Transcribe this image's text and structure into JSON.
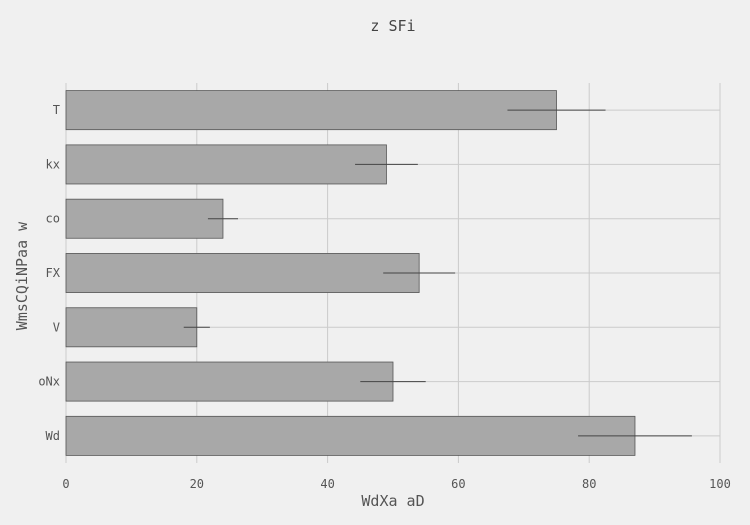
{
  "chart_data": {
    "type": "bar",
    "orientation": "horizontal",
    "title": "z  SFi",
    "xlabel": "WdXa  aD",
    "ylabel": "WmsCQiNPaa  w",
    "categories": [
      "T",
      "kx",
      "co",
      "FX",
      "V",
      "oNx",
      "Wd"
    ],
    "values": [
      75,
      49,
      24,
      54,
      20,
      50,
      87
    ],
    "errors": [
      7.5,
      4.8,
      2.3,
      5.5,
      2.0,
      5.0,
      8.7
    ],
    "xlim": [
      0,
      100
    ],
    "xticks": [
      0,
      20,
      40,
      60,
      80,
      100
    ],
    "grid": true,
    "colors": {
      "bar": "#a8a8a8",
      "edge": "#555555",
      "background": "#f0f0f0",
      "grid": "#cbcbcb"
    }
  }
}
